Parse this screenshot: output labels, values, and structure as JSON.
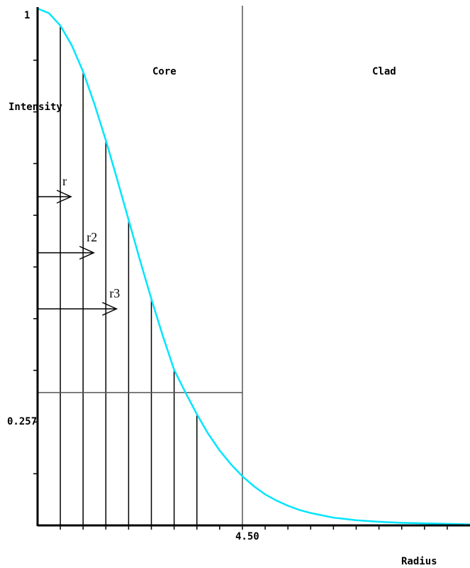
{
  "chart_data": {
    "type": "line",
    "xlabel": "Radius",
    "ylabel": "Intensity",
    "xlim": [
      0,
      9.5
    ],
    "ylim": [
      0,
      1
    ],
    "y_top_label": "1",
    "marked_level": {
      "label": "0.257",
      "value": 0.257
    },
    "boundary": {
      "label": "4.50",
      "value": 4.5
    },
    "regions": [
      "Core",
      "Clad"
    ],
    "x_ticks": [
      0.5,
      1.0,
      1.5,
      2.0,
      2.5,
      3.0,
      3.5,
      4.0,
      4.5,
      5.0,
      5.5,
      6.0,
      6.5,
      7.0,
      7.5,
      8.0,
      8.5,
      9.0
    ],
    "y_ticks": [
      0.1,
      0.2,
      0.3,
      0.4,
      0.5,
      0.6,
      0.7,
      0.8,
      0.9
    ],
    "series": [
      {
        "color": "#00e5ff",
        "x": [
          0,
          0.25,
          0.5,
          0.75,
          1.0,
          1.25,
          1.5,
          1.75,
          2.0,
          2.25,
          2.5,
          2.75,
          3.0,
          3.25,
          3.5,
          3.75,
          4.0,
          4.25,
          4.5,
          4.75,
          5.0,
          5.25,
          5.5,
          5.75,
          6.0,
          6.5,
          7.0,
          7.5,
          8.0,
          8.5,
          9.0,
          9.5
        ],
        "y": [
          1.0,
          0.991,
          0.967,
          0.929,
          0.878,
          0.815,
          0.745,
          0.669,
          0.591,
          0.513,
          0.438,
          0.367,
          0.301,
          0.257,
          0.215,
          0.177,
          0.145,
          0.118,
          0.095,
          0.076,
          0.06,
          0.048,
          0.038,
          0.03,
          0.024,
          0.015,
          0.01,
          0.007,
          0.005,
          0.004,
          0.003,
          0.002
        ]
      }
    ],
    "sample_lines_x": [
      0.5,
      1.0,
      1.5,
      2.0,
      2.5,
      3.0,
      3.5
    ],
    "arrows": [
      {
        "label": "r",
        "to_x": 0.5
      },
      {
        "label": "r2",
        "to_x": 1.0
      },
      {
        "label": "r3",
        "to_x": 1.5
      }
    ]
  }
}
